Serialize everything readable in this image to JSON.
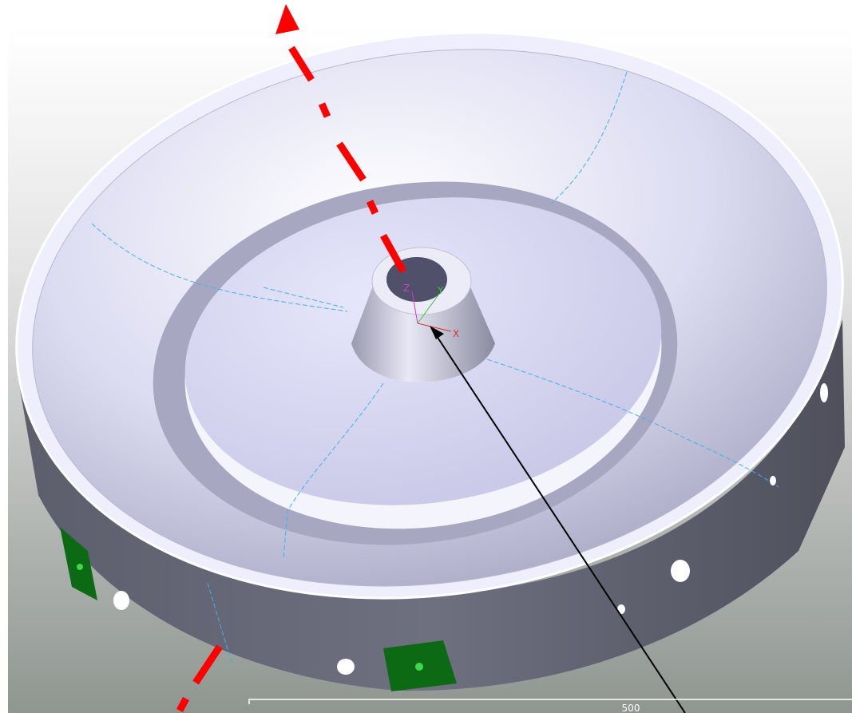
{
  "viewport": {
    "axis_labels": [
      "Z",
      "Y",
      "X"
    ],
    "scale_label": "500"
  }
}
